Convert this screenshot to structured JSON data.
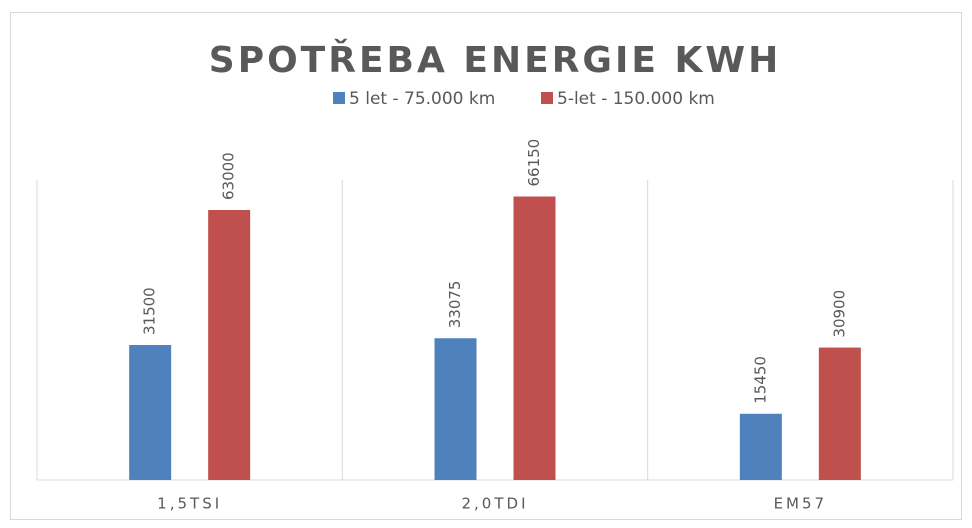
{
  "chart_data": {
    "type": "bar",
    "title": "SPOTŘEBA ENERGIE KWH",
    "categories": [
      "1,5TSI",
      "2,0TDI",
      "EM57"
    ],
    "series": [
      {
        "name": "5 let - 75.000 km",
        "color": "#4f81bd",
        "values": [
          31500,
          33075,
          15450
        ]
      },
      {
        "name": "5-let - 150.000 km",
        "color": "#c0504d",
        "values": [
          63000,
          66150,
          30900
        ]
      }
    ],
    "ylim": [
      0,
      70000
    ],
    "legend": "top"
  }
}
